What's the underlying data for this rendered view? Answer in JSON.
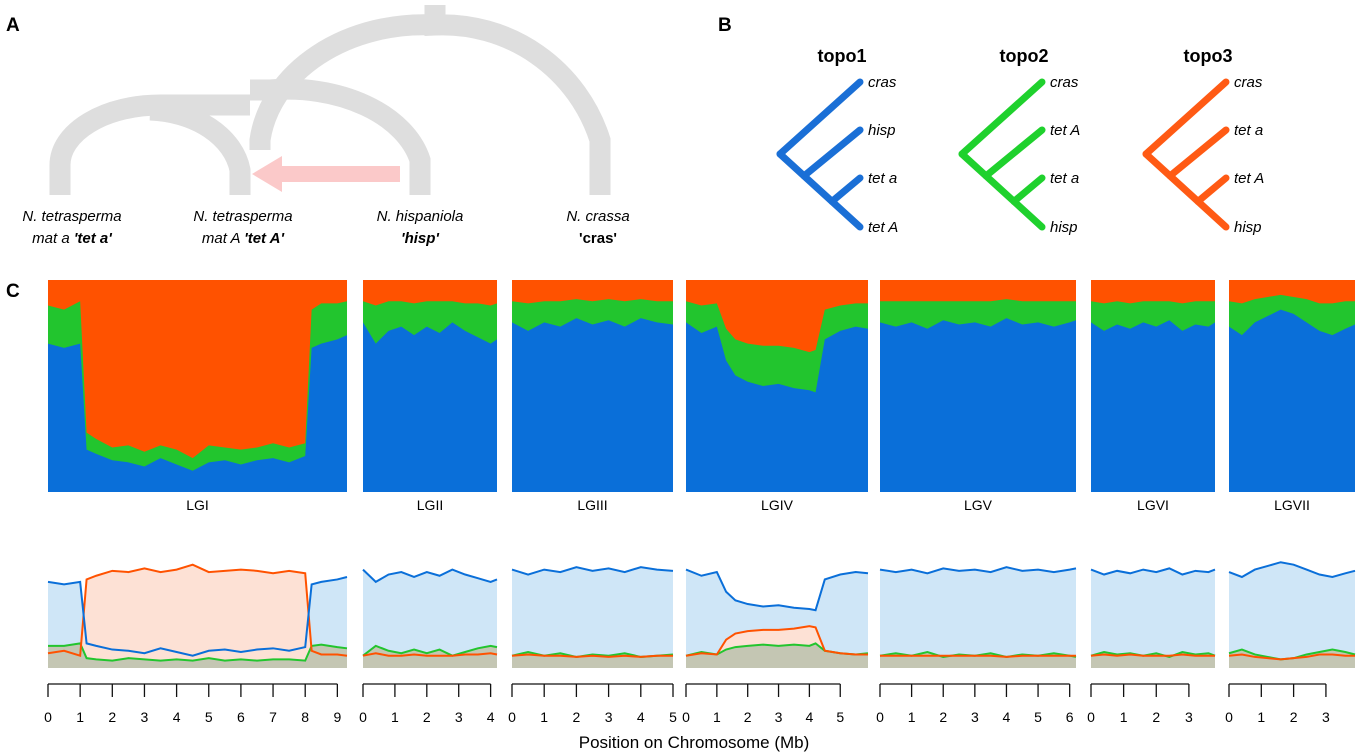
{
  "panels": {
    "a": "A",
    "b": "B",
    "c": "C"
  },
  "species": [
    {
      "line1": "N. tetrasperma",
      "line2_plain": "mat a ",
      "line2_bold": "'tet a'"
    },
    {
      "line1": "N. tetrasperma",
      "line2_plain": "mat A ",
      "line2_bold": "'tet A'"
    },
    {
      "line1": "N. hispaniola",
      "line2_plain": "",
      "line2_bold": "'hisp'"
    },
    {
      "line1": "N. crassa",
      "line2_plain": "",
      "line2_bold": "'cras'"
    }
  ],
  "topologies": [
    {
      "name": "topo1",
      "color": "#1a6fd6",
      "tips": [
        "cras",
        "hisp",
        "tet a",
        "tet A"
      ]
    },
    {
      "name": "topo2",
      "color": "#1fd12d",
      "tips": [
        "cras",
        "tet A",
        "tet a",
        "hisp"
      ]
    },
    {
      "name": "topo3",
      "color": "#ff5a14",
      "tips": [
        "cras",
        "tet a",
        "tet A",
        "hisp"
      ]
    }
  ],
  "colors": {
    "topo1": "#0a6fd9",
    "topo2": "#22c52e",
    "topo3": "#ff5200",
    "tree": "#dedede",
    "introgression_arrow": "#fbc9c9"
  },
  "xlabel": "Position on Chromosome (Mb)",
  "chart_data": {
    "type": "area",
    "description_units": "top: stacked fraction of topo1/topo2/topo3; bottom: relative weighting lines",
    "series_names": [
      "topo1",
      "topo2",
      "topo3"
    ],
    "chromosomes": [
      {
        "name": "LGI",
        "length_mb": 9.3,
        "ticks": [
          0,
          1,
          2,
          3,
          4,
          5,
          6,
          7,
          8,
          9
        ],
        "x": [
          0,
          0.5,
          1.0,
          1.2,
          1.5,
          2,
          2.5,
          3,
          3.5,
          4,
          4.5,
          5,
          5.5,
          6,
          6.5,
          7,
          7.5,
          8,
          8.2,
          8.5,
          9,
          9.3
        ],
        "topo1": [
          0.7,
          0.68,
          0.7,
          0.2,
          0.18,
          0.15,
          0.14,
          0.12,
          0.16,
          0.13,
          0.1,
          0.14,
          0.15,
          0.13,
          0.15,
          0.16,
          0.14,
          0.17,
          0.68,
          0.7,
          0.72,
          0.74
        ],
        "topo2": [
          0.18,
          0.18,
          0.2,
          0.08,
          0.07,
          0.06,
          0.08,
          0.07,
          0.06,
          0.07,
          0.06,
          0.08,
          0.06,
          0.07,
          0.06,
          0.07,
          0.07,
          0.06,
          0.18,
          0.19,
          0.17,
          0.16
        ],
        "topo3": [
          0.12,
          0.14,
          0.1,
          0.72,
          0.75,
          0.79,
          0.78,
          0.81,
          0.78,
          0.8,
          0.84,
          0.78,
          0.79,
          0.8,
          0.79,
          0.77,
          0.79,
          0.77,
          0.14,
          0.11,
          0.11,
          0.1
        ]
      },
      {
        "name": "LGII",
        "length_mb": 4.2,
        "ticks": [
          0,
          1,
          2,
          3,
          4
        ],
        "x": [
          0,
          0.4,
          0.8,
          1.2,
          1.6,
          2.0,
          2.4,
          2.8,
          3.2,
          3.6,
          4.0,
          4.2
        ],
        "topo1": [
          0.8,
          0.7,
          0.76,
          0.78,
          0.74,
          0.78,
          0.75,
          0.8,
          0.76,
          0.73,
          0.7,
          0.72
        ],
        "topo2": [
          0.1,
          0.18,
          0.14,
          0.12,
          0.15,
          0.12,
          0.15,
          0.1,
          0.13,
          0.16,
          0.18,
          0.17
        ],
        "topo3": [
          0.1,
          0.12,
          0.1,
          0.1,
          0.11,
          0.1,
          0.1,
          0.1,
          0.11,
          0.11,
          0.12,
          0.11
        ]
      },
      {
        "name": "LGIII",
        "length_mb": 5.0,
        "ticks": [
          0,
          1,
          2,
          3,
          4,
          5
        ],
        "x": [
          0,
          0.5,
          1,
          1.5,
          2,
          2.5,
          3,
          3.5,
          4,
          4.5,
          5.0
        ],
        "topo1": [
          0.8,
          0.76,
          0.8,
          0.78,
          0.82,
          0.79,
          0.81,
          0.78,
          0.82,
          0.8,
          0.79
        ],
        "topo2": [
          0.1,
          0.13,
          0.1,
          0.12,
          0.09,
          0.11,
          0.1,
          0.12,
          0.09,
          0.1,
          0.11
        ],
        "topo3": [
          0.1,
          0.11,
          0.1,
          0.1,
          0.09,
          0.1,
          0.09,
          0.1,
          0.09,
          0.1,
          0.1
        ]
      },
      {
        "name": "LGIV",
        "length_mb": 5.9,
        "ticks": [
          0,
          1,
          2,
          3,
          4,
          5
        ],
        "x": [
          0,
          0.5,
          1.0,
          1.3,
          1.6,
          2,
          2.5,
          3,
          3.5,
          4,
          4.2,
          4.5,
          5,
          5.5,
          5.9
        ],
        "topo1": [
          0.8,
          0.75,
          0.78,
          0.62,
          0.55,
          0.52,
          0.5,
          0.51,
          0.49,
          0.48,
          0.47,
          0.72,
          0.76,
          0.78,
          0.77
        ],
        "topo2": [
          0.1,
          0.13,
          0.11,
          0.15,
          0.17,
          0.18,
          0.19,
          0.18,
          0.19,
          0.18,
          0.2,
          0.14,
          0.12,
          0.11,
          0.12
        ],
        "topo3": [
          0.1,
          0.12,
          0.11,
          0.23,
          0.28,
          0.3,
          0.31,
          0.31,
          0.32,
          0.34,
          0.33,
          0.14,
          0.12,
          0.11,
          0.11
        ]
      },
      {
        "name": "LGV",
        "length_mb": 6.2,
        "ticks": [
          0,
          1,
          2,
          3,
          4,
          5,
          6
        ],
        "x": [
          0,
          0.5,
          1,
          1.5,
          2,
          2.5,
          3,
          3.5,
          4,
          4.5,
          5,
          5.5,
          6,
          6.2
        ],
        "topo1": [
          0.8,
          0.78,
          0.8,
          0.77,
          0.81,
          0.79,
          0.8,
          0.78,
          0.82,
          0.79,
          0.8,
          0.78,
          0.8,
          0.81
        ],
        "topo2": [
          0.1,
          0.12,
          0.1,
          0.13,
          0.09,
          0.11,
          0.1,
          0.12,
          0.09,
          0.11,
          0.1,
          0.12,
          0.1,
          0.09
        ],
        "topo3": [
          0.1,
          0.1,
          0.1,
          0.1,
          0.1,
          0.1,
          0.1,
          0.1,
          0.09,
          0.1,
          0.1,
          0.1,
          0.1,
          0.1
        ]
      },
      {
        "name": "LGVI",
        "length_mb": 3.8,
        "ticks": [
          0,
          1,
          2,
          3
        ],
        "x": [
          0,
          0.4,
          0.8,
          1.2,
          1.6,
          2.0,
          2.4,
          2.8,
          3.2,
          3.6,
          3.8
        ],
        "topo1": [
          0.8,
          0.76,
          0.79,
          0.77,
          0.8,
          0.78,
          0.81,
          0.76,
          0.79,
          0.78,
          0.8
        ],
        "topo2": [
          0.1,
          0.13,
          0.11,
          0.12,
          0.1,
          0.12,
          0.09,
          0.13,
          0.11,
          0.12,
          0.1
        ],
        "topo3": [
          0.1,
          0.11,
          0.1,
          0.11,
          0.1,
          0.1,
          0.1,
          0.11,
          0.1,
          0.1,
          0.1
        ]
      },
      {
        "name": "LGVII",
        "length_mb": 3.9,
        "ticks": [
          0,
          1,
          2,
          3
        ],
        "x": [
          0,
          0.4,
          0.8,
          1.2,
          1.6,
          2.0,
          2.4,
          2.8,
          3.2,
          3.6,
          3.9
        ],
        "topo1": [
          0.78,
          0.74,
          0.8,
          0.83,
          0.86,
          0.84,
          0.8,
          0.76,
          0.74,
          0.77,
          0.79
        ],
        "topo2": [
          0.12,
          0.15,
          0.11,
          0.09,
          0.07,
          0.08,
          0.11,
          0.13,
          0.15,
          0.13,
          0.11
        ],
        "topo3": [
          0.1,
          0.11,
          0.09,
          0.08,
          0.07,
          0.08,
          0.09,
          0.11,
          0.11,
          0.1,
          0.1
        ]
      }
    ]
  }
}
